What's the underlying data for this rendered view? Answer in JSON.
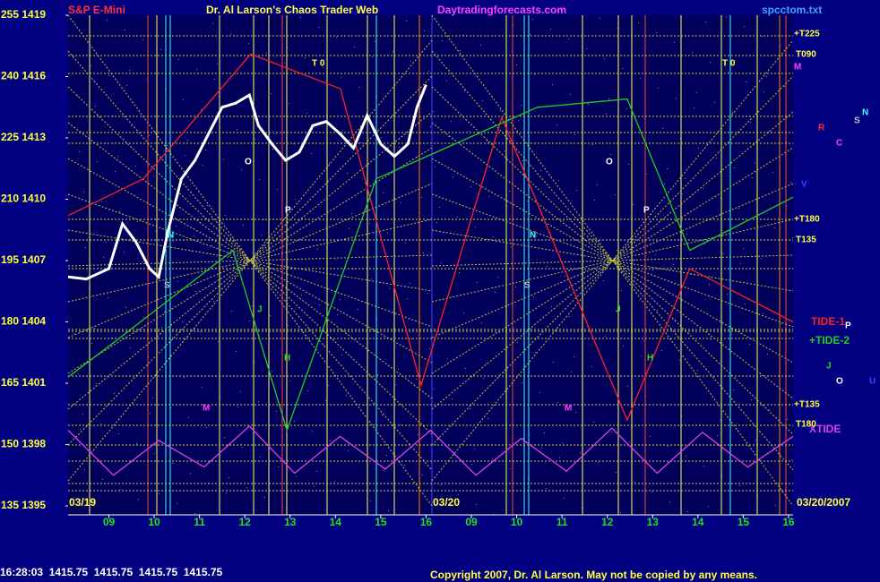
{
  "header": {
    "instrument": "S&P E-Mini",
    "title": "Dr. Al Larson's Chaos Trader Web",
    "site": "Daytradingforecasts.com",
    "file": "spcctom.txt"
  },
  "chart_data": {
    "type": "line",
    "x": [
      8.1,
      8.5,
      9.0,
      9.3,
      9.6,
      9.9,
      10.1,
      10.3,
      10.6,
      10.9,
      11.2,
      11.5,
      11.8,
      12.1,
      12.3,
      12.6,
      12.9,
      13.2,
      13.5,
      13.8,
      14.1,
      14.4,
      14.7,
      15.0,
      15.3,
      15.6,
      15.8,
      16.0
    ],
    "values": [
      1406.2,
      1406.1,
      1406.6,
      1408.8,
      1407.9,
      1406.6,
      1406.2,
      1408.4,
      1411.0,
      1411.9,
      1413.2,
      1414.5,
      1414.7,
      1415.1,
      1413.6,
      1412.7,
      1411.9,
      1412.3,
      1413.6,
      1413.8,
      1413.2,
      1412.5,
      1414.1,
      1412.7,
      1412.1,
      1412.7,
      1414.5,
      1415.6
    ],
    "color": "#ffffff",
    "series": [
      {
        "name": "TIDE-1",
        "color": "#ff2020",
        "x": [
          8.1,
          9.76,
          12.13,
          14.11,
          15.89,
          17.67,
          20.44,
          21.82,
          24.1
        ],
        "values": [
          1409.2,
          1411.0,
          1417.1,
          1415.4,
          1400.9,
          1414.0,
          1399.2,
          1406.6,
          1404.0
        ]
      },
      {
        "name": "+TIDE-2",
        "color": "#20d020",
        "x": [
          8.1,
          9.17,
          11.74,
          12.93,
          14.9,
          18.46,
          20.44,
          21.82,
          24.1
        ],
        "values": [
          1401.3,
          1403.1,
          1407.5,
          1398.7,
          1411.0,
          1414.5,
          1414.9,
          1407.5,
          1410.1
        ]
      },
      {
        "name": "XTIDE",
        "color": "#e040e0",
        "x": [
          8.1,
          9.1,
          10.1,
          11.1,
          12.1,
          13.1,
          14.1,
          15.1,
          16.1,
          17.1,
          18.1,
          19.1,
          20.1,
          21.1,
          22.1,
          23.1,
          24.1
        ],
        "values": [
          1398.7,
          1396.5,
          1398.2,
          1396.9,
          1398.9,
          1396.6,
          1398.4,
          1396.8,
          1398.7,
          1396.5,
          1398.3,
          1396.7,
          1398.8,
          1396.6,
          1398.6,
          1396.9,
          1398.4
        ]
      }
    ],
    "xlim": [
      8.1,
      24.1
    ],
    "xticks": [
      {
        "value": 9,
        "label": "09"
      },
      10,
      11,
      12,
      13,
      14,
      15,
      16,
      {
        "value": 17,
        "label": "09"
      },
      {
        "value": 18,
        "label": "10"
      },
      {
        "value": 19,
        "label": "11"
      },
      {
        "value": 20,
        "label": "12"
      },
      {
        "value": 21,
        "label": "13"
      },
      {
        "value": 22,
        "label": "14"
      },
      {
        "value": 23,
        "label": "15"
      },
      {
        "value": 24,
        "label": "16"
      }
    ],
    "ylim": [
      1395,
      1419
    ],
    "yticks": [
      {
        "value": 1419,
        "label": "255 1419"
      },
      {
        "value": 1416,
        "label": "240 1416"
      },
      {
        "value": 1413,
        "label": "225 1413"
      },
      {
        "value": 1410,
        "label": "210 1410"
      },
      {
        "value": 1407,
        "label": "195 1407"
      },
      {
        "value": 1404,
        "label": "180 1404"
      },
      {
        "value": 1401,
        "label": "165 1401"
      },
      {
        "value": 1398,
        "label": "150 1398"
      },
      {
        "value": 1395,
        "label": "135 1395"
      }
    ],
    "dates": [
      "03/19",
      "03/20",
      "03/20/2007"
    ],
    "annotations": [
      "+T225",
      "T090",
      "M",
      "T 0",
      "+T180",
      "T135",
      "+T135",
      "T180",
      "T 0",
      "O",
      "P",
      "O",
      "P",
      "N",
      "S",
      "J",
      "H",
      "M",
      "N",
      "S",
      "J",
      "H",
      "M",
      "R",
      "C",
      "S",
      "N",
      "V",
      "P",
      "J",
      "O",
      "U"
    ]
  },
  "footer": {
    "quote": "16:28:03  1415.75  1415.75  1415.75  1415.75",
    "copyright": "Copyright 2007, Dr. Al Larson. May not be copied by any means."
  }
}
